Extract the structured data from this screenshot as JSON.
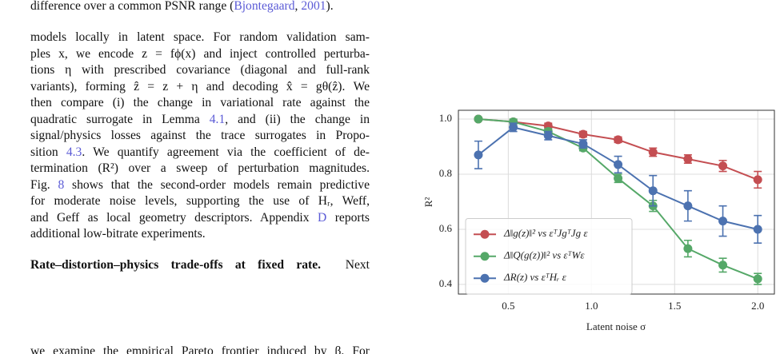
{
  "top_line": [
    "difference over a common PSNR range (",
    "Bjontegaard",
    ", ",
    "2001",
    ")."
  ],
  "paragraph": {
    "lines": [
      [
        "models locally in latent space. For random validation sam-"
      ],
      [
        "ples x, we encode z = fϕ(x) and inject controlled perturba-"
      ],
      [
        "tions η with prescribed covariance (diagonal and full-rank"
      ],
      [
        "variants), forming ẑ = z + η and decoding x̂ = gθ(ẑ). We"
      ],
      [
        "then compare (i) the change in variational rate against the"
      ],
      [
        "quadratic surrogate in Lemma ",
        "4.1",
        ", and (ii) the change in"
      ],
      [
        "signal/physics losses against the trace surrogates in Propo-"
      ],
      [
        "sition ",
        "4.3",
        ". We quantify agreement via the coefficient of de-"
      ],
      [
        "termination (R²) over a sweep of perturbation magnitudes."
      ],
      [
        "Fig. ",
        "8",
        " shows that the second-order models remain predictive"
      ],
      [
        "for moderate noise levels, supporting the use of Hᵣ, Weff,"
      ],
      [
        "and Geff as local geometry descriptors. Appendix ",
        "D",
        " reports"
      ],
      [
        "additional low-bitrate experiments."
      ]
    ]
  },
  "section": {
    "heading": "Rate–distortion–physics trade-offs at fixed rate.",
    "first_line_rest": "Next",
    "second_line": "we examine the empirical Pareto frontier induced by β. For"
  },
  "chart_data": {
    "type": "line",
    "x_label": "Latent noise σ",
    "y_label": "R²",
    "x": [
      0.32,
      0.53,
      0.74,
      0.95,
      1.16,
      1.37,
      1.58,
      1.79,
      2.0
    ],
    "xlim": [
      0.2,
      2.1
    ],
    "ylim": [
      0.365,
      1.032
    ],
    "xticks": [
      {
        "value": 0.5,
        "label": "0.5"
      },
      {
        "value": 1.0,
        "label": "1.0"
      },
      {
        "value": 1.5,
        "label": "1.5"
      },
      {
        "value": 2.0,
        "label": "2.0"
      }
    ],
    "yticks": [
      {
        "value": 0.4,
        "label": "0.4"
      },
      {
        "value": 0.6,
        "label": "0.6"
      },
      {
        "value": 0.8,
        "label": "0.8"
      },
      {
        "value": 1.0,
        "label": "1.0"
      }
    ],
    "grid": true,
    "legend": "lower-left",
    "series": [
      {
        "name": "Δ‖g(z)‖² vs εᵀJgᵀJg ε",
        "color": "#c44e52",
        "values": [
          1.0,
          0.99,
          0.975,
          0.945,
          0.925,
          0.88,
          0.855,
          0.83,
          0.78
        ],
        "errors": [
          0.005,
          0.008,
          0.01,
          0.01,
          0.01,
          0.015,
          0.015,
          0.02,
          0.03
        ]
      },
      {
        "name": "Δ‖Q(g(z))‖² vs εᵀWε",
        "color": "#55a868",
        "values": [
          1.0,
          0.99,
          0.955,
          0.895,
          0.785,
          0.685,
          0.53,
          0.47,
          0.42
        ],
        "errors": [
          0.005,
          0.01,
          0.01,
          0.01,
          0.015,
          0.02,
          0.03,
          0.025,
          0.02
        ]
      },
      {
        "name": "ΔR(z) vs εᵀHᵣ ε",
        "color": "#4c72b0",
        "values": [
          0.87,
          0.97,
          0.94,
          0.91,
          0.835,
          0.74,
          0.685,
          0.63,
          0.6
        ],
        "errors": [
          0.05,
          0.015,
          0.015,
          0.015,
          0.03,
          0.055,
          0.055,
          0.055,
          0.05
        ]
      }
    ]
  }
}
